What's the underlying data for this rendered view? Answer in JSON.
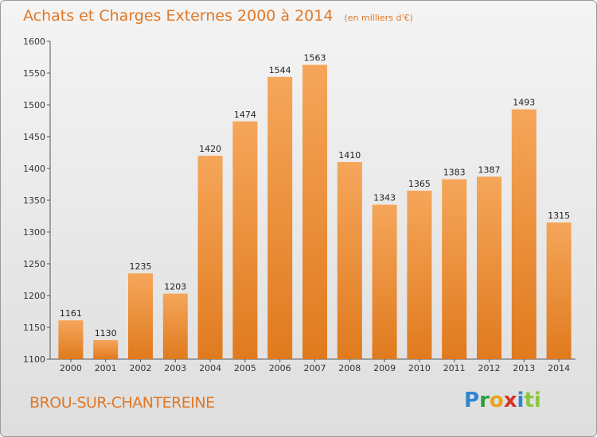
{
  "header": {
    "title": "Achats et Charges Externes 2000 à 2014",
    "subtitle": "(en milliers d'€)"
  },
  "footer": {
    "town": "BROU-SUR-CHANTEREINE",
    "logo": [
      "P",
      "r",
      "o",
      "x",
      "i",
      "ti"
    ]
  },
  "colors": {
    "bar_top": "#f5a65a",
    "bar_bottom": "#e07a1e",
    "accent": "#e07826"
  },
  "chart_data": {
    "type": "bar",
    "title": "Achats et Charges Externes 2000 à 2014",
    "subtitle": "(en milliers d'€)",
    "categories": [
      "2000",
      "2001",
      "2002",
      "2003",
      "2004",
      "2005",
      "2006",
      "2007",
      "2008",
      "2009",
      "2010",
      "2011",
      "2012",
      "2013",
      "2014"
    ],
    "values": [
      1161,
      1130,
      1235,
      1203,
      1420,
      1474,
      1544,
      1563,
      1410,
      1343,
      1365,
      1383,
      1387,
      1493,
      1315
    ],
    "ylim": [
      1100,
      1600
    ],
    "yticks": [
      1100,
      1150,
      1200,
      1250,
      1300,
      1350,
      1400,
      1450,
      1500,
      1550,
      1600
    ],
    "grid": false,
    "xlabel": "",
    "ylabel": ""
  }
}
